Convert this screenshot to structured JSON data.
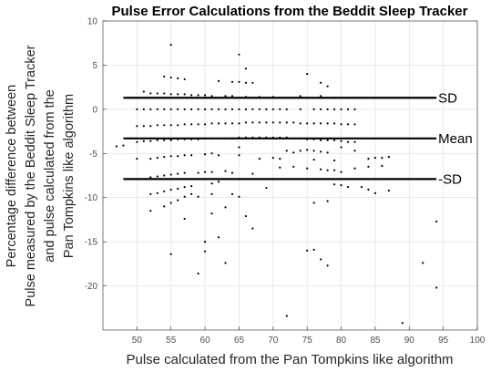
{
  "chart_data": {
    "type": "scatter",
    "title": "Pulse Error Calculations from the Beddit Sleep Tracker",
    "xlabel": "Pulse calculated from the Pan Tompkins like algorithm",
    "ylabel_lines": [
      "Percentage difference between",
      "Pulse measured by the Beddit Sleep Tracker",
      "and pulse calculated from the",
      "Pan Tompkins like algorithm"
    ],
    "xlim": [
      45,
      100
    ],
    "ylim": [
      -25,
      10
    ],
    "xticks": [
      50,
      55,
      60,
      65,
      70,
      75,
      80,
      85,
      90,
      95,
      100
    ],
    "yticks": [
      -20,
      -15,
      -10,
      -5,
      0,
      5,
      10
    ],
    "grid": true,
    "reference_lines": [
      {
        "label": "SD",
        "y": 1.3,
        "x_start": 48,
        "x_end": 94
      },
      {
        "label": "Mean",
        "y": -3.3,
        "x_start": 48,
        "x_end": 94
      },
      {
        "label": "-SD",
        "y": -7.9,
        "x_start": 48,
        "x_end": 94
      }
    ],
    "points": [
      [
        55,
        7.3
      ],
      [
        65,
        6.2
      ],
      [
        66,
        4.6
      ],
      [
        75,
        4.0
      ],
      [
        78,
        2.6
      ],
      [
        54,
        3.7
      ],
      [
        55,
        3.6
      ],
      [
        56,
        3.5
      ],
      [
        57,
        3.4
      ],
      [
        62,
        3.2
      ],
      [
        64,
        3.1
      ],
      [
        65,
        3.1
      ],
      [
        66,
        3.0
      ],
      [
        67,
        3.0
      ],
      [
        77,
        3.0
      ],
      [
        51,
        2.0
      ],
      [
        52,
        1.8
      ],
      [
        53,
        1.8
      ],
      [
        54,
        1.8
      ],
      [
        55,
        1.7
      ],
      [
        56,
        1.7
      ],
      [
        57,
        1.7
      ],
      [
        58,
        1.6
      ],
      [
        59,
        1.6
      ],
      [
        60,
        1.6
      ],
      [
        61,
        1.5
      ],
      [
        63,
        1.5
      ],
      [
        64,
        1.5
      ],
      [
        66,
        1.4
      ],
      [
        68,
        1.4
      ],
      [
        70,
        1.4
      ],
      [
        74,
        1.5
      ],
      [
        77,
        1.5
      ],
      [
        79,
        1.3
      ],
      [
        81,
        1.3
      ],
      [
        50,
        0.0
      ],
      [
        51,
        0.0
      ],
      [
        52,
        0.0
      ],
      [
        53,
        0.0
      ],
      [
        54,
        0.0
      ],
      [
        55,
        0.0
      ],
      [
        56,
        0.0
      ],
      [
        57,
        0.0
      ],
      [
        58,
        0.0
      ],
      [
        59,
        0.0
      ],
      [
        60,
        0.0
      ],
      [
        61,
        0.0
      ],
      [
        62,
        0.0
      ],
      [
        63,
        0.0
      ],
      [
        64,
        0.0
      ],
      [
        65,
        0.0
      ],
      [
        66,
        0.0
      ],
      [
        67,
        0.0
      ],
      [
        68,
        0.0
      ],
      [
        69,
        0.0
      ],
      [
        70,
        0.0
      ],
      [
        71,
        0.0
      ],
      [
        72,
        0.0
      ],
      [
        74,
        0.0
      ],
      [
        76,
        0.0
      ],
      [
        77,
        0.0
      ],
      [
        78,
        0.0
      ],
      [
        79,
        0.0
      ],
      [
        80,
        0.0
      ],
      [
        81,
        0.0
      ],
      [
        82,
        0.0
      ],
      [
        50,
        -1.9
      ],
      [
        51,
        -1.9
      ],
      [
        52,
        -1.9
      ],
      [
        53,
        -1.8
      ],
      [
        54,
        -1.8
      ],
      [
        55,
        -1.8
      ],
      [
        56,
        -1.8
      ],
      [
        57,
        -1.7
      ],
      [
        58,
        -1.7
      ],
      [
        59,
        -1.7
      ],
      [
        60,
        -1.7
      ],
      [
        61,
        -1.6
      ],
      [
        62,
        -1.6
      ],
      [
        63,
        -1.6
      ],
      [
        64,
        -1.6
      ],
      [
        65,
        -1.6
      ],
      [
        66,
        -1.5
      ],
      [
        67,
        -1.5
      ],
      [
        68,
        -1.5
      ],
      [
        69,
        -1.5
      ],
      [
        70,
        -1.5
      ],
      [
        71,
        -1.5
      ],
      [
        72,
        -1.5
      ],
      [
        73,
        -1.5
      ],
      [
        74,
        -1.6
      ],
      [
        75,
        -1.6
      ],
      [
        76,
        -1.6
      ],
      [
        77,
        -1.6
      ],
      [
        78,
        -1.6
      ],
      [
        79,
        -1.6
      ],
      [
        80,
        -1.7
      ],
      [
        81,
        -1.7
      ],
      [
        82,
        -1.7
      ],
      [
        50,
        -3.7
      ],
      [
        51,
        -3.6
      ],
      [
        52,
        -3.6
      ],
      [
        53,
        -3.5
      ],
      [
        54,
        -3.5
      ],
      [
        55,
        -3.5
      ],
      [
        56,
        -3.4
      ],
      [
        57,
        -3.4
      ],
      [
        58,
        -3.4
      ],
      [
        59,
        -3.4
      ],
      [
        60,
        -3.3
      ],
      [
        61,
        -3.3
      ],
      [
        62,
        -3.3
      ],
      [
        63,
        -3.3
      ],
      [
        64,
        -3.3
      ],
      [
        65,
        -3.2
      ],
      [
        66,
        -3.2
      ],
      [
        67,
        -3.2
      ],
      [
        68,
        -3.2
      ],
      [
        69,
        -3.2
      ],
      [
        70,
        -3.2
      ],
      [
        71,
        -3.2
      ],
      [
        72,
        -3.2
      ],
      [
        73,
        -3.3
      ],
      [
        74,
        -3.3
      ],
      [
        75,
        -3.4
      ],
      [
        76,
        -3.4
      ],
      [
        77,
        -3.5
      ],
      [
        78,
        -3.5
      ],
      [
        79,
        -3.5
      ],
      [
        80,
        -3.6
      ],
      [
        81,
        -3.7
      ],
      [
        82,
        -3.7
      ],
      [
        47,
        -4.2
      ],
      [
        48,
        -4.1
      ],
      [
        65,
        -4.3
      ],
      [
        72,
        -4.7
      ],
      [
        73,
        -4.9
      ],
      [
        74,
        -4.7
      ],
      [
        75,
        -4.6
      ],
      [
        76,
        -4.7
      ],
      [
        77,
        -4.8
      ],
      [
        78,
        -4.9
      ],
      [
        80,
        -4.3
      ],
      [
        82,
        -4.7
      ],
      [
        50,
        -5.6
      ],
      [
        52,
        -5.6
      ],
      [
        53,
        -5.5
      ],
      [
        54,
        -5.4
      ],
      [
        55,
        -5.3
      ],
      [
        56,
        -5.3
      ],
      [
        57,
        -5.2
      ],
      [
        58,
        -5.2
      ],
      [
        60,
        -5.1
      ],
      [
        61,
        -5.0
      ],
      [
        62,
        -5.2
      ],
      [
        65,
        -5.2
      ],
      [
        68,
        -5.6
      ],
      [
        70,
        -5.5
      ],
      [
        71,
        -5.6
      ],
      [
        76,
        -5.7
      ],
      [
        79,
        -5.8
      ],
      [
        84,
        -5.6
      ],
      [
        85,
        -5.5
      ],
      [
        86,
        -5.5
      ],
      [
        87,
        -5.4
      ],
      [
        71,
        -6.6
      ],
      [
        73,
        -6.5
      ],
      [
        75,
        -6.7
      ],
      [
        77,
        -6.8
      ],
      [
        78,
        -6.9
      ],
      [
        79,
        -6.9
      ],
      [
        80,
        -7.1
      ],
      [
        82,
        -6.7
      ],
      [
        84,
        -6.5
      ],
      [
        86,
        -6.4
      ],
      [
        52,
        -7.7
      ],
      [
        53,
        -7.6
      ],
      [
        54,
        -7.5
      ],
      [
        55,
        -7.4
      ],
      [
        56,
        -7.3
      ],
      [
        57,
        -7.2
      ],
      [
        59,
        -7.2
      ],
      [
        60,
        -7.1
      ],
      [
        61,
        -7.1
      ],
      [
        63,
        -7.0
      ],
      [
        64,
        -7.2
      ],
      [
        67,
        -7.3
      ],
      [
        52,
        -9.6
      ],
      [
        53,
        -9.5
      ],
      [
        54,
        -9.3
      ],
      [
        55,
        -9.1
      ],
      [
        56,
        -9.0
      ],
      [
        57,
        -8.8
      ],
      [
        58,
        -8.7
      ],
      [
        61,
        -8.4
      ],
      [
        62,
        -8.2
      ],
      [
        64,
        -9.6
      ],
      [
        65,
        -9.9
      ],
      [
        69,
        -8.9
      ],
      [
        79,
        -8.5
      ],
      [
        80,
        -8.6
      ],
      [
        81,
        -8.8
      ],
      [
        83,
        -8.8
      ],
      [
        84,
        -9.1
      ],
      [
        85,
        -9.5
      ],
      [
        87,
        -9.2
      ],
      [
        52,
        -11.5
      ],
      [
        54,
        -11.0
      ],
      [
        55,
        -10.6
      ],
      [
        56,
        -10.3
      ],
      [
        57,
        -9.9
      ],
      [
        58,
        -9.6
      ],
      [
        59,
        -9.9
      ],
      [
        61,
        -9.6
      ],
      [
        76,
        -10.6
      ],
      [
        78,
        -10.4
      ],
      [
        57,
        -12.4
      ],
      [
        61,
        -11.8
      ],
      [
        63,
        -11.1
      ],
      [
        66,
        -12.1
      ],
      [
        67,
        -13.5
      ],
      [
        94,
        -12.7
      ],
      [
        60,
        -15.0
      ],
      [
        62,
        -14.5
      ],
      [
        60,
        -16.1
      ],
      [
        63,
        -17.4
      ],
      [
        55,
        -16.4
      ],
      [
        59,
        -18.6
      ],
      [
        75,
        -16.0
      ],
      [
        76,
        -15.9
      ],
      [
        77,
        -17.0
      ],
      [
        78,
        -17.7
      ],
      [
        92,
        -17.4
      ],
      [
        94,
        -20.2
      ],
      [
        72,
        -23.4
      ],
      [
        89,
        -24.2
      ]
    ]
  }
}
